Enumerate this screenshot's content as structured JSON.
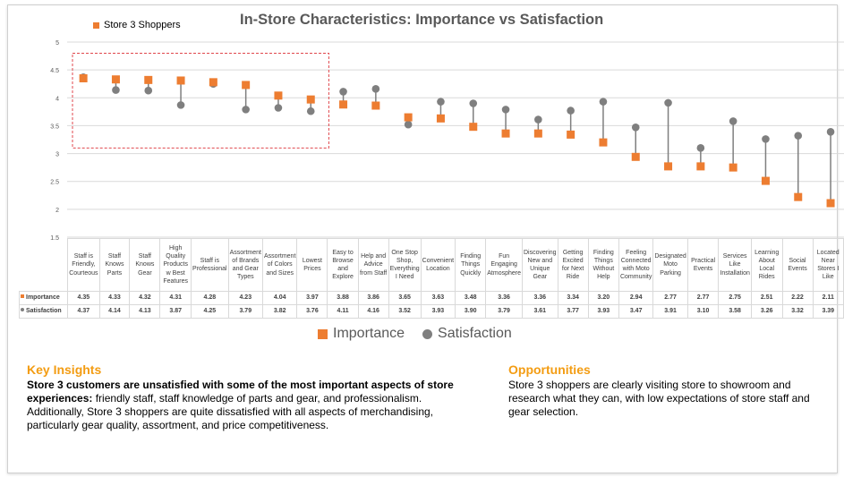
{
  "chart_data": {
    "type": "scatter",
    "title": "In-Store Characteristics: Importance vs Satisfaction",
    "top_legend": "Store 3 Shoppers",
    "ylim": [
      1.5,
      5
    ],
    "yticks": [
      "1.5",
      "2",
      "2.5",
      "3",
      "3.5",
      "4",
      "4.5",
      "5"
    ],
    "grid": true,
    "legend_position": "bottom",
    "categories": [
      "Staff is Friendly, Courteous",
      "Staff Knows Parts",
      "Staff Knows Gear",
      "High Quality Products w Best Features",
      "Staff is Professional",
      "Assortment of Brands and Gear Types",
      "Assortment of Colors and Sizes",
      "Lowest Prices",
      "Easy to Browse and Explore",
      "Help and Advice from Staff",
      "One Stop Shop, Everything I Need",
      "Convenient Location",
      "Finding Things Quickly",
      "Fun Engaging Atmosphere",
      "Discovering New and Unique Gear",
      "Getting Excited for Next Ride",
      "Finding Things Without Help",
      "Feeling Connected with Moto Community",
      "Designated Moto Parking",
      "Practical Events",
      "Services Like Installation",
      "Learning About Local Rides",
      "Social Events",
      "Located Near Stores I Like"
    ],
    "series": [
      {
        "name": "Importance",
        "color": "#ed7d31",
        "marker": "square",
        "values": [
          4.35,
          4.33,
          4.32,
          4.31,
          4.28,
          4.23,
          4.04,
          3.97,
          3.88,
          3.86,
          3.65,
          3.63,
          3.48,
          3.36,
          3.36,
          3.34,
          3.2,
          2.94,
          2.77,
          2.77,
          2.75,
          2.51,
          2.22,
          2.11
        ]
      },
      {
        "name": "Satisfaction",
        "color": "#7f7f7f",
        "marker": "circle",
        "values": [
          4.37,
          4.14,
          4.13,
          3.87,
          4.25,
          3.79,
          3.82,
          3.76,
          4.11,
          4.16,
          3.52,
          3.93,
          3.9,
          3.79,
          3.61,
          3.77,
          3.93,
          3.47,
          3.91,
          3.1,
          3.58,
          3.26,
          3.32,
          3.39
        ]
      }
    ],
    "highlight_box": {
      "categories_count": 8,
      "color": "#e0474c"
    }
  },
  "insights": {
    "heading": "Key Insights",
    "bold": "Store 3 customers are unsatisfied with some of the most important aspects of store experiences:",
    "text": " friendly staff, staff knowledge of parts and gear, and professionalism. Additionally, Store 3 shoppers are quite dissatisfied with all aspects of merchandising, particularly gear quality, assortment, and price competitiveness."
  },
  "opportunities": {
    "heading": "Opportunities",
    "text": "Store 3 shoppers are clearly visiting store to showroom and research what they can, with low expectations of store staff and gear selection."
  }
}
